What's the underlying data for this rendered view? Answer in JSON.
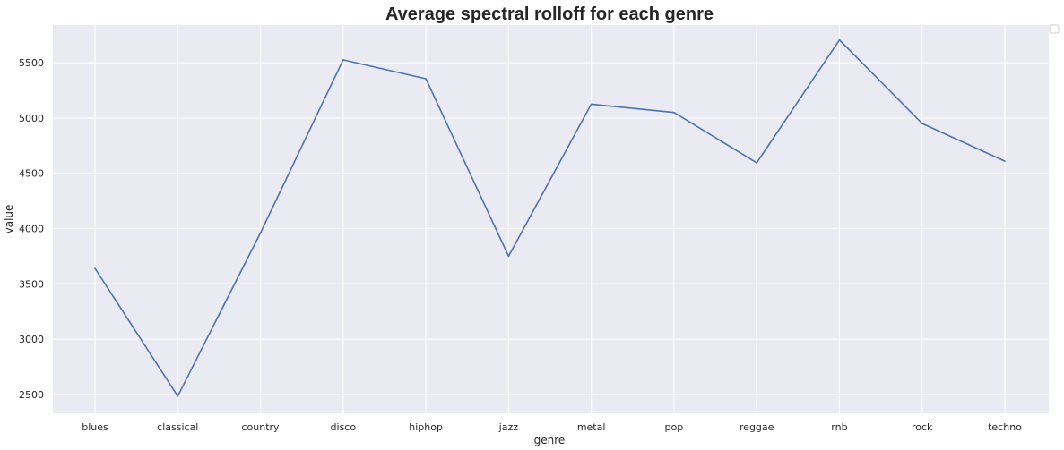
{
  "colors": {
    "background": "#ffffff",
    "plot_area": "#eaeaf2",
    "gridline": "#ffffff",
    "series_line": "#4c72b0",
    "text": "#262626",
    "legend_border": "#cccccc"
  },
  "chart_data": {
    "type": "line",
    "title": "Average spectral rolloff for each genre",
    "xlabel": "genre",
    "ylabel": "value",
    "categories": [
      "blues",
      "classical",
      "country",
      "disco",
      "hiphop",
      "jazz",
      "metal",
      "pop",
      "reggae",
      "rnb",
      "rock",
      "techno"
    ],
    "series": [
      {
        "values": [
          3640,
          2485,
          3960,
          5525,
          5355,
          3750,
          5125,
          5050,
          4595,
          5705,
          4950,
          4610
        ]
      }
    ],
    "ylim": [
      2330,
      5840
    ],
    "yticks": [
      2500,
      3000,
      3500,
      4000,
      4500,
      5000,
      5500
    ],
    "ytick_labels": [
      "2500",
      "3000",
      "3500",
      "4000",
      "4500",
      "5000",
      "5500"
    ],
    "grid": true,
    "legend": {
      "placement": "upper-right-outside",
      "entries": []
    }
  }
}
